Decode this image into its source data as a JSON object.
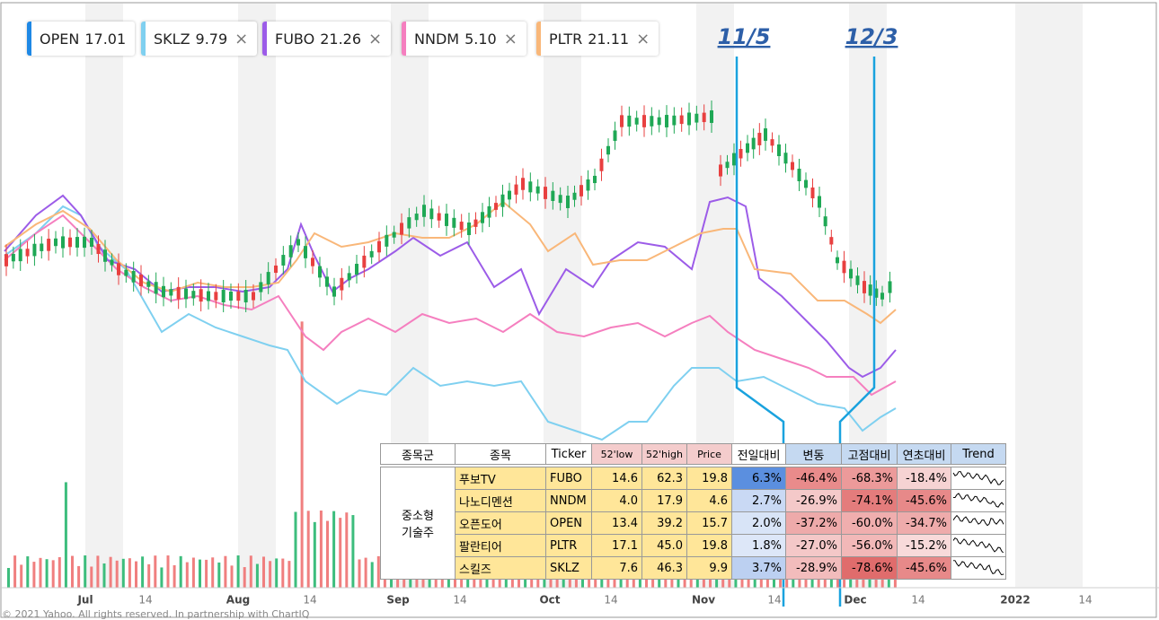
{
  "legend": [
    {
      "label": "OPEN",
      "value": "17.01"
    },
    {
      "label": "SKLZ",
      "value": "9.79"
    },
    {
      "label": "FUBO",
      "value": "21.26"
    },
    {
      "label": "NNDM",
      "value": "5.10"
    },
    {
      "label": "PLTR",
      "value": "21.11"
    }
  ],
  "annotations": [
    "11/5",
    "12/3"
  ],
  "x_axis": [
    "Jul",
    "14",
    "Aug",
    "14",
    "Sep",
    "14",
    "Oct",
    "14",
    "Nov",
    "14",
    "Dec",
    "14",
    "2022",
    "14"
  ],
  "footer": "© 2021 Yahoo. All rights reserved. In partnership with ChartIQ",
  "table": {
    "header": [
      "종목군",
      "종목",
      "Ticker",
      "52'low",
      "52'high",
      "Price",
      "전일대비",
      "변동",
      "고점대비",
      "연초대비",
      "Trend"
    ],
    "group": [
      "중소형",
      "기술주"
    ],
    "rows": [
      [
        "푸보TV",
        "FUBO",
        "14.6",
        "62.3",
        "19.8",
        "6.3%",
        "-46.4%",
        "-68.3%",
        "-18.4%"
      ],
      [
        "나노디멘션",
        "NNDM",
        "4.0",
        "17.9",
        "4.6",
        "2.7%",
        "-26.9%",
        "-74.1%",
        "-45.6%"
      ],
      [
        "오픈도어",
        "OPEN",
        "13.4",
        "39.2",
        "15.7",
        "2.0%",
        "-37.2%",
        "-60.0%",
        "-34.7%"
      ],
      [
        "팔란티어",
        "PLTR",
        "17.1",
        "45.0",
        "19.8",
        "1.8%",
        "-27.0%",
        "-56.0%",
        "-15.2%"
      ],
      [
        "스킬즈",
        "SKLZ",
        "7.6",
        "46.3",
        "9.9",
        "3.7%",
        "-28.9%",
        "-78.6%",
        "-45.6%"
      ]
    ]
  }
}
